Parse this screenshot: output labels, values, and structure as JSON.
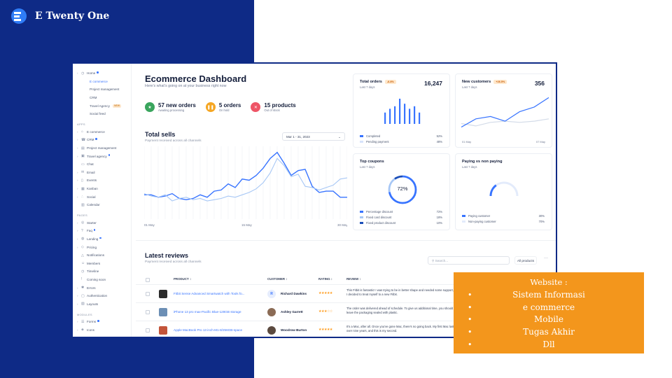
{
  "brand": {
    "name": "E Twenty One"
  },
  "sidebar": {
    "items": [
      {
        "label": "Home",
        "icon": "clock-icon",
        "caret": true,
        "dot": true,
        "active": false,
        "sub": false
      },
      {
        "label": "E commerce",
        "active": true,
        "sub": true
      },
      {
        "label": "Project management",
        "sub": true
      },
      {
        "label": "CRM",
        "sub": true
      },
      {
        "label": "Travel Agency",
        "sub": true,
        "badge": "NEW"
      },
      {
        "label": "Social feed",
        "sub": true
      },
      {
        "section": "APPS"
      },
      {
        "label": "E commerce",
        "icon": "cart-icon",
        "caret": true
      },
      {
        "label": "CRM",
        "icon": "phone-icon",
        "caret": true,
        "dot": true
      },
      {
        "label": "Project management",
        "icon": "clipboard-icon",
        "caret": true
      },
      {
        "label": "Travel agency",
        "icon": "briefcase-icon",
        "caret": true,
        "dot": true
      },
      {
        "label": "Chat",
        "icon": "chat-icon"
      },
      {
        "label": "Email",
        "icon": "mail-icon",
        "caret": true
      },
      {
        "label": "Events",
        "icon": "bookmark-icon",
        "caret": true
      },
      {
        "label": "Kanban",
        "icon": "grid-icon",
        "caret": true
      },
      {
        "label": "Social",
        "icon": "share-icon",
        "caret": true
      },
      {
        "label": "Calendar",
        "icon": "calendar-icon"
      },
      {
        "section": "PAGES"
      },
      {
        "label": "Starter",
        "icon": "compass-icon",
        "caret": true
      },
      {
        "label": "Faq",
        "icon": "help-icon",
        "caret": true,
        "dot": true
      },
      {
        "label": "Landing",
        "icon": "globe-icon",
        "caret": true,
        "dot": true
      },
      {
        "label": "Pricing",
        "icon": "tag-icon",
        "caret": true
      },
      {
        "label": "Notifications",
        "icon": "bell-icon"
      },
      {
        "label": "Members",
        "icon": "users-icon"
      },
      {
        "label": "Timeline",
        "icon": "clock-icon"
      },
      {
        "label": "Coming soon",
        "icon": "alert-icon"
      },
      {
        "label": "Errors",
        "icon": "bug-icon",
        "caret": true
      },
      {
        "label": "Authentication",
        "icon": "lock-icon",
        "caret": true
      },
      {
        "label": "Layouts",
        "icon": "layout-icon",
        "caret": true
      },
      {
        "section": "MODULES"
      },
      {
        "label": "Forms",
        "icon": "form-icon",
        "caret": true,
        "dot": true
      },
      {
        "label": "Icons",
        "icon": "icons-icon",
        "caret": true
      }
    ]
  },
  "header": {
    "title": "Ecommerce Dashboard",
    "subtitle": "Here’s what’s going on at your business right now"
  },
  "stats": [
    {
      "value": "57 new orders",
      "label": "Awaiting processing",
      "color": "#3aa55d",
      "icon": "star-icon"
    },
    {
      "value": "5 orders",
      "label": "On hold",
      "color": "#f5a623",
      "icon": "pause-icon"
    },
    {
      "value": "15 products",
      "label": "Out of stock",
      "color": "#ee5566",
      "icon": "x-icon"
    }
  ],
  "total_sells": {
    "title": "Total sells",
    "subtitle": "Payment received across all channels",
    "date_range": "Mar 1 - 31, 2023",
    "x_labels": [
      "01 May",
      "15 May",
      "30 May"
    ],
    "chart_data": {
      "type": "line",
      "x": [
        1,
        2,
        3,
        4,
        5,
        6,
        7,
        8,
        9,
        10,
        11,
        12,
        13,
        14,
        15,
        16,
        17,
        18,
        19,
        20,
        21,
        22,
        23,
        24,
        25,
        26,
        27,
        28,
        29,
        30
      ],
      "series": [
        {
          "color": "#3874ff",
          "values": [
            20,
            20,
            18,
            19,
            21,
            17,
            16,
            17,
            20,
            18,
            23,
            24,
            29,
            26,
            33,
            32,
            36,
            42,
            50,
            55,
            46,
            36,
            40,
            41,
            27,
            22,
            23,
            23,
            18,
            18
          ]
        },
        {
          "color": "#a7c7f5",
          "values": [
            21,
            19,
            18,
            20,
            15,
            17,
            18,
            16,
            17,
            15,
            16,
            17,
            19,
            18,
            20,
            22,
            25,
            30,
            38,
            50,
            44,
            35,
            37,
            27,
            26,
            24,
            26,
            28,
            33,
            34
          ]
        }
      ]
    }
  },
  "cards": {
    "total_orders": {
      "title": "Total orders",
      "pill": "-6.8%",
      "period": "Last 7 days",
      "value": "16,247",
      "legend": [
        {
          "label": "Completed",
          "value": "52%",
          "color": "#3874ff"
        },
        {
          "label": "Pending payment",
          "value": "48%",
          "color": "#d7e3fb"
        }
      ],
      "chart_data": {
        "type": "bar",
        "values": [
          9,
          12,
          14,
          20,
          16,
          12,
          14,
          9
        ]
      }
    },
    "new_customers": {
      "title": "New customers",
      "pill": "+26.5%",
      "period": "Last 7 days",
      "value": "356",
      "x_labels": [
        "01 May",
        "07 May"
      ],
      "chart_data": {
        "type": "line",
        "x": [
          1,
          2,
          3,
          4,
          5,
          6,
          7
        ],
        "series": [
          {
            "color": "#3874ff",
            "values": [
              5,
              12,
              14,
              10,
              18,
              22,
              30
            ]
          },
          {
            "color": "#d3dbe8",
            "values": [
              8,
              6,
              9,
              10,
              9,
              10,
              12
            ]
          }
        ]
      }
    },
    "top_coupons": {
      "title": "Top coupons",
      "period": "Last 7 days",
      "center": "72%",
      "legend": [
        {
          "label": "Percentage discount",
          "value": "72%",
          "color": "#3874ff"
        },
        {
          "label": "Fixed card discount",
          "value": "18%",
          "color": "#a7c7f5"
        },
        {
          "label": "Fixed product discount",
          "value": "10%",
          "color": "#1c4fb9"
        }
      ],
      "chart_data": {
        "type": "pie",
        "values": [
          72,
          18,
          10
        ]
      }
    },
    "paying": {
      "title": "Paying vs non paying",
      "period": "Last 7 days",
      "legend": [
        {
          "label": "Paying customer",
          "value": "30%",
          "color": "#3874ff"
        },
        {
          "label": "Non-paying customer",
          "value": "70%",
          "color": "#e3ebfb"
        }
      ],
      "chart_data": {
        "type": "pie",
        "values": [
          30,
          70
        ]
      }
    }
  },
  "reviews": {
    "title": "Latest reviews",
    "subtitle": "Payment received across all channels",
    "search_placeholder": "Search...",
    "filter": "All products",
    "more": "···",
    "columns": [
      "PRODUCT",
      "CUSTOMER",
      "RATING",
      "REVIEW"
    ],
    "rows": [
      {
        "product": "Fitbit Sense Advanced Smartwatch with Tools fo...",
        "customer": "Richard Dawkins",
        "rating": "★★★★★",
        "review": "This Fitbit is fantastic! I was trying to be in better shape and needed some support, so I decided to treat myself to a new Fitbit.",
        "thumb_color": "#2b2b2b",
        "avatar_color": "#e6edfd",
        "avatar_text": "R"
      },
      {
        "product": "iPhone 13 pro max-Pacific Blue-128GB storage",
        "customer": "Ashley Garrett",
        "rating": "★★★☆☆",
        "review": "The order was delivered ahead of schedule. To give us additional time, you should leave the packaging sealed with plastic.",
        "thumb_color": "#6c8fb5",
        "avatar_color": "#8b6b55",
        "avatar_text": ""
      },
      {
        "product": "Apple MacBook Pro 13 inch-M1-8/256GB-space",
        "customer": "Woodrow Burton",
        "rating": "★★★★★",
        "review": "It's a Mac, after all. Once you've gone Mac, there's no going back. My first Mac lasted over nine years, and this is my second.",
        "thumb_color": "#c3543a",
        "avatar_color": "#5b4a3f",
        "avatar_text": ""
      }
    ]
  },
  "promo": {
    "heading": "Website :",
    "items": [
      "Sistem Informasi",
      "e commerce",
      "Mobile",
      "Tugas Akhir",
      "Dll"
    ]
  }
}
